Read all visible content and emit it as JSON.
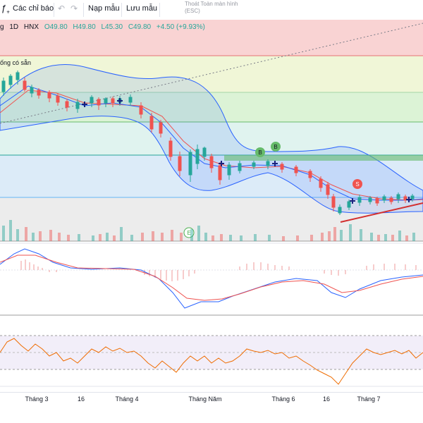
{
  "toolbar": {
    "indicators_label": "Các chỉ báo",
    "load_template_label": "Nạp mẫu",
    "save_template_label": "Lưu mẫu",
    "fullscreen_hint_line1": "Thoát Toàn màn hình",
    "fullscreen_hint_line2": "(ESC)"
  },
  "legend": {
    "symbol_fragment": "g",
    "interval": "1D",
    "exchange": "HNX",
    "open": "O49.80",
    "high": "H49.80",
    "low": "L45.30",
    "close": "C49.80",
    "change": "+4.50 (+9.93%)"
  },
  "tags": {
    "available": "ống có sẵn"
  },
  "chart_markers": {
    "buy_label": "B",
    "sell_label": "S",
    "earnings_label": "E"
  },
  "x_axis": {
    "labels": [
      "Tháng 3",
      "16",
      "Tháng 4",
      "Tháng Năm",
      "Tháng 6",
      "16",
      "Tháng 7"
    ]
  },
  "colors": {
    "up": "#26a69a",
    "down": "#ef5350",
    "bollinger_fill": "#2962ff",
    "buy_marker": "#66bb6a",
    "sell_marker": "#ef5350",
    "trendline": "#d32f2f"
  },
  "chart_data": [
    {
      "type": "candlestick",
      "title": "",
      "overlays": [
        "bollinger-bands",
        "moving-averages",
        "fibonacci-retracement",
        "trendline"
      ],
      "x": [
        "Tháng 3",
        "16",
        "Tháng 4",
        "Tháng Năm",
        "Tháng 6",
        "16",
        "Tháng 7"
      ],
      "last": {
        "open": 49.8,
        "high": 49.8,
        "low": 45.3,
        "close": 49.8,
        "change": 4.5,
        "change_pct": 9.93
      },
      "markers": [
        {
          "label": "B",
          "x_index": 27
        },
        {
          "label": "B",
          "x_index": 29
        },
        {
          "label": "S",
          "x_index": 38
        },
        {
          "label": "E",
          "x_index": 20
        }
      ]
    },
    {
      "type": "bar",
      "title": "",
      "series": [
        {
          "values": []
        }
      ]
    },
    {
      "type": "line",
      "title": "",
      "series": [
        {},
        {}
      ]
    },
    {
      "type": "line",
      "title": "",
      "series": [
        {}
      ]
    }
  ]
}
